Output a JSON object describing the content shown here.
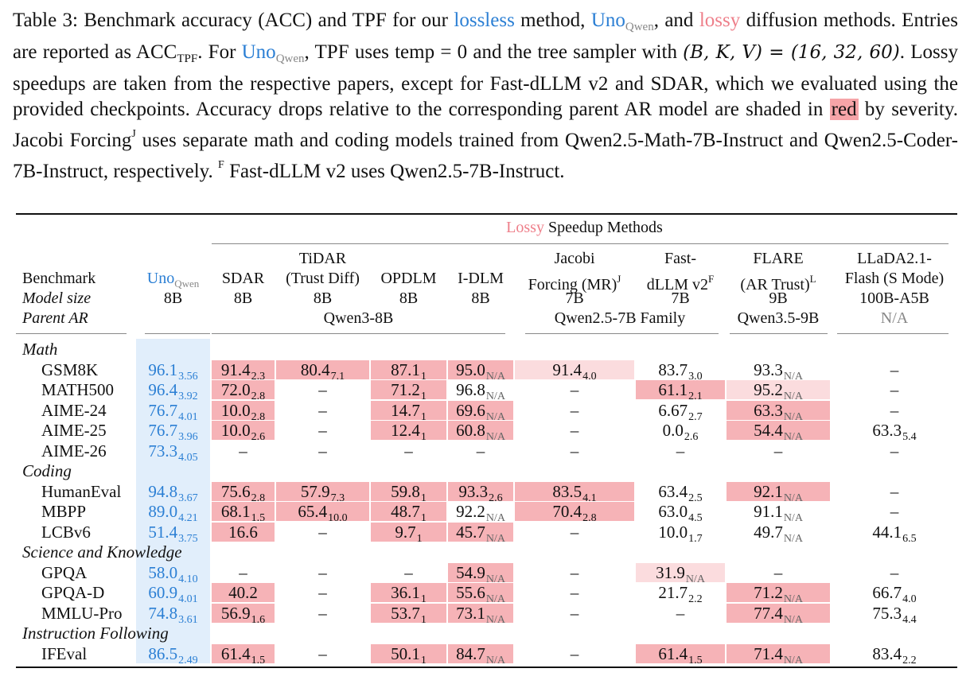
{
  "caption": {
    "label": "Table 3:",
    "t1": " Benchmark accuracy (ACC) and TPF for our ",
    "lossless": "lossless",
    "t2": " method, ",
    "uno": "Uno",
    "uno_sub": "Qwen",
    "t3": ", and ",
    "lossy": "lossy",
    "t4": " diffusion methods. Entries are reported as ",
    "acc": "ACC",
    "acc_sub": "TPF",
    "t5": ". For ",
    "t6": ", TPF uses temp = 0 and the tree sampler with ",
    "bkv": "(B, K, V) = (16, 32, 60)",
    "t7": ". Lossy speedups are taken from the respective papers, except for Fast-dLLM v2 and SDAR, which we evaluated using the provided checkpoints. Accuracy drops relative to the corresponding parent AR model are shaded in ",
    "red": "red",
    "t8": " by severity. Jacobi Forcing",
    "supJ": "J",
    "t9": " uses separate math and coding models trained from Qwen2.5-Math-7B-Instruct and Qwen2.5-Coder-7B-Instruct, respectively. ",
    "supF": "F",
    "t10": " Fast-dLLM v2 uses Qwen2.5-7B-Instruct."
  },
  "header": {
    "lossy_word": "Lossy",
    "speedup_rest": " Speedup Methods",
    "benchmark": "Benchmark",
    "model_size": "Model size",
    "parent_ar": "Parent AR",
    "columns": [
      {
        "name_lines": [
          "Uno"
        ],
        "name_sub": "Qwen",
        "size": "8B"
      },
      {
        "name_lines": [
          "SDAR"
        ],
        "size": "8B"
      },
      {
        "name_lines": [
          "TiDAR",
          "(Trust Diff)"
        ],
        "size": "8B"
      },
      {
        "name_lines": [
          "OPDLM"
        ],
        "size": "8B"
      },
      {
        "name_lines": [
          "I-DLM"
        ],
        "size": "8B"
      },
      {
        "name_lines": [
          "Jacobi",
          "Forcing (MR)"
        ],
        "sup": "J",
        "size": "7B"
      },
      {
        "name_lines": [
          "Fast-",
          "dLLM v2"
        ],
        "sup": "F",
        "size": "7B"
      },
      {
        "name_lines": [
          "FLARE",
          "(AR Trust)"
        ],
        "sup": "L",
        "size": "9B"
      },
      {
        "name_lines": [
          "LLaDA2.1-",
          "Flash (S Mode)"
        ],
        "size": "100B-A5B"
      }
    ],
    "parents": [
      "Qwen3-8B",
      "Qwen2.5-7B Family",
      "Qwen3.5-9B",
      "N/A"
    ]
  },
  "colors": {
    "uno_blue": "#2b7fd4",
    "uno_bg": "#e1eefb",
    "shade_strong": "#f6b3b7",
    "shade_light": "#fbdcde",
    "lossy_pink": "#ee7f8a"
  },
  "sections": [
    {
      "name": "Math",
      "rows": [
        {
          "label": "GSM8K",
          "cells": [
            {
              "v": "96.1",
              "s": "3.56"
            },
            {
              "v": "91.4",
              "s": "2.3",
              "shade": 2
            },
            {
              "v": "80.4",
              "s": "7.1",
              "shade": 2
            },
            {
              "v": "87.1",
              "s": "1",
              "shade": 2
            },
            {
              "v": "95.0",
              "s": "N/A",
              "shade": 2
            },
            {
              "v": "91.4",
              "s": "4.0",
              "shade": 1
            },
            {
              "v": "83.7",
              "s": "3.0"
            },
            {
              "v": "93.3",
              "s": "N/A"
            },
            {
              "v": "–"
            }
          ]
        },
        {
          "label": "MATH500",
          "cells": [
            {
              "v": "96.4",
              "s": "3.92"
            },
            {
              "v": "72.0",
              "s": "2.8",
              "shade": 2
            },
            {
              "v": "–"
            },
            {
              "v": "71.2",
              "s": "1",
              "shade": 2
            },
            {
              "v": "96.8",
              "s": "N/A"
            },
            {
              "v": "–"
            },
            {
              "v": "61.1",
              "s": "2.1",
              "shade": 2
            },
            {
              "v": "95.2",
              "s": "N/A",
              "shade": 1
            },
            {
              "v": "–"
            }
          ]
        },
        {
          "label": "AIME-24",
          "cells": [
            {
              "v": "76.7",
              "s": "4.01"
            },
            {
              "v": "10.0",
              "s": "2.8",
              "shade": 2
            },
            {
              "v": "–"
            },
            {
              "v": "14.7",
              "s": "1",
              "shade": 2
            },
            {
              "v": "69.6",
              "s": "N/A",
              "shade": 2
            },
            {
              "v": "–"
            },
            {
              "v": "6.67",
              "s": "2.7"
            },
            {
              "v": "63.3",
              "s": "N/A",
              "shade": 2
            },
            {
              "v": "–"
            }
          ]
        },
        {
          "label": "AIME-25",
          "cells": [
            {
              "v": "76.7",
              "s": "3.96"
            },
            {
              "v": "10.0",
              "s": "2.6",
              "shade": 2
            },
            {
              "v": "–"
            },
            {
              "v": "12.4",
              "s": "1",
              "shade": 2
            },
            {
              "v": "60.8",
              "s": "N/A",
              "shade": 2
            },
            {
              "v": "–"
            },
            {
              "v": "0.0",
              "s": "2.6"
            },
            {
              "v": "54.4",
              "s": "N/A",
              "shade": 2
            },
            {
              "v": "63.3",
              "s": "5.4"
            }
          ]
        },
        {
          "label": "AIME-26",
          "cells": [
            {
              "v": "73.3",
              "s": "4.05"
            },
            {
              "v": "–"
            },
            {
              "v": "–"
            },
            {
              "v": "–"
            },
            {
              "v": "–"
            },
            {
              "v": "–"
            },
            {
              "v": "–"
            },
            {
              "v": "–"
            },
            {
              "v": "–"
            }
          ]
        }
      ]
    },
    {
      "name": "Coding",
      "rows": [
        {
          "label": "HumanEval",
          "cells": [
            {
              "v": "94.8",
              "s": "3.67"
            },
            {
              "v": "75.6",
              "s": "2.8",
              "shade": 2
            },
            {
              "v": "57.9",
              "s": "7.3",
              "shade": 2
            },
            {
              "v": "59.8",
              "s": "1",
              "shade": 2
            },
            {
              "v": "93.3",
              "s": "2.6",
              "shade": 2
            },
            {
              "v": "83.5",
              "s": "4.1",
              "shade": 2
            },
            {
              "v": "63.4",
              "s": "2.5"
            },
            {
              "v": "92.1",
              "s": "N/A",
              "shade": 2
            },
            {
              "v": "–"
            }
          ]
        },
        {
          "label": "MBPP",
          "cells": [
            {
              "v": "89.0",
              "s": "4.21"
            },
            {
              "v": "68.1",
              "s": "1.5",
              "shade": 2
            },
            {
              "v": "65.4",
              "s": "10.0",
              "shade": 2
            },
            {
              "v": "48.7",
              "s": "1",
              "shade": 2
            },
            {
              "v": "92.2",
              "s": "N/A"
            },
            {
              "v": "70.4",
              "s": "2.8",
              "shade": 2
            },
            {
              "v": "63.0",
              "s": "4.5"
            },
            {
              "v": "91.1",
              "s": "N/A"
            },
            {
              "v": "–"
            }
          ]
        },
        {
          "label": "LCBv6",
          "cells": [
            {
              "v": "51.4",
              "s": "3.75"
            },
            {
              "v": "16.6",
              "shade": 2
            },
            {
              "v": "–"
            },
            {
              "v": "9.7",
              "s": "1",
              "shade": 2
            },
            {
              "v": "45.7",
              "s": "N/A",
              "shade": 2
            },
            {
              "v": "–"
            },
            {
              "v": "10.0",
              "s": "1.7"
            },
            {
              "v": "49.7",
              "s": "N/A"
            },
            {
              "v": "44.1",
              "s": "6.5"
            }
          ]
        }
      ]
    },
    {
      "name": "Science and Knowledge",
      "rows": [
        {
          "label": "GPQA",
          "cells": [
            {
              "v": "58.0",
              "s": "4.10"
            },
            {
              "v": "–"
            },
            {
              "v": "–"
            },
            {
              "v": "–"
            },
            {
              "v": "54.9",
              "s": "N/A",
              "shade": 2
            },
            {
              "v": "–"
            },
            {
              "v": "31.9",
              "s": "N/A",
              "shade": 1
            },
            {
              "v": "–"
            },
            {
              "v": "–"
            }
          ]
        },
        {
          "label": "GPQA-D",
          "cells": [
            {
              "v": "60.9",
              "s": "4.01"
            },
            {
              "v": "40.2",
              "shade": 2
            },
            {
              "v": "–"
            },
            {
              "v": "36.1",
              "s": "1",
              "shade": 2
            },
            {
              "v": "55.6",
              "s": "N/A",
              "shade": 2
            },
            {
              "v": "–"
            },
            {
              "v": "21.7",
              "s": "2.2"
            },
            {
              "v": "71.2",
              "s": "N/A",
              "shade": 2
            },
            {
              "v": "66.7",
              "s": "4.0"
            }
          ]
        },
        {
          "label": "MMLU-Pro",
          "cells": [
            {
              "v": "74.8",
              "s": "3.61"
            },
            {
              "v": "56.9",
              "s": "1.6",
              "shade": 2
            },
            {
              "v": "–"
            },
            {
              "v": "53.7",
              "s": "1",
              "shade": 2
            },
            {
              "v": "73.1",
              "s": "N/A",
              "shade": 2
            },
            {
              "v": "–"
            },
            {
              "v": "–"
            },
            {
              "v": "77.4",
              "s": "N/A",
              "shade": 2
            },
            {
              "v": "75.3",
              "s": "4.4"
            }
          ]
        }
      ]
    },
    {
      "name": "Instruction Following",
      "rows": [
        {
          "label": "IFEval",
          "cells": [
            {
              "v": "86.5",
              "s": "2.49"
            },
            {
              "v": "61.4",
              "s": "1.5",
              "shade": 2
            },
            {
              "v": "–"
            },
            {
              "v": "50.1",
              "s": "1",
              "shade": 2
            },
            {
              "v": "84.7",
              "s": "N/A",
              "shade": 2
            },
            {
              "v": "–"
            },
            {
              "v": "61.4",
              "s": "1.5",
              "shade": 2
            },
            {
              "v": "71.4",
              "s": "N/A",
              "shade": 2
            },
            {
              "v": "83.4",
              "s": "2.2"
            }
          ]
        }
      ]
    }
  ]
}
